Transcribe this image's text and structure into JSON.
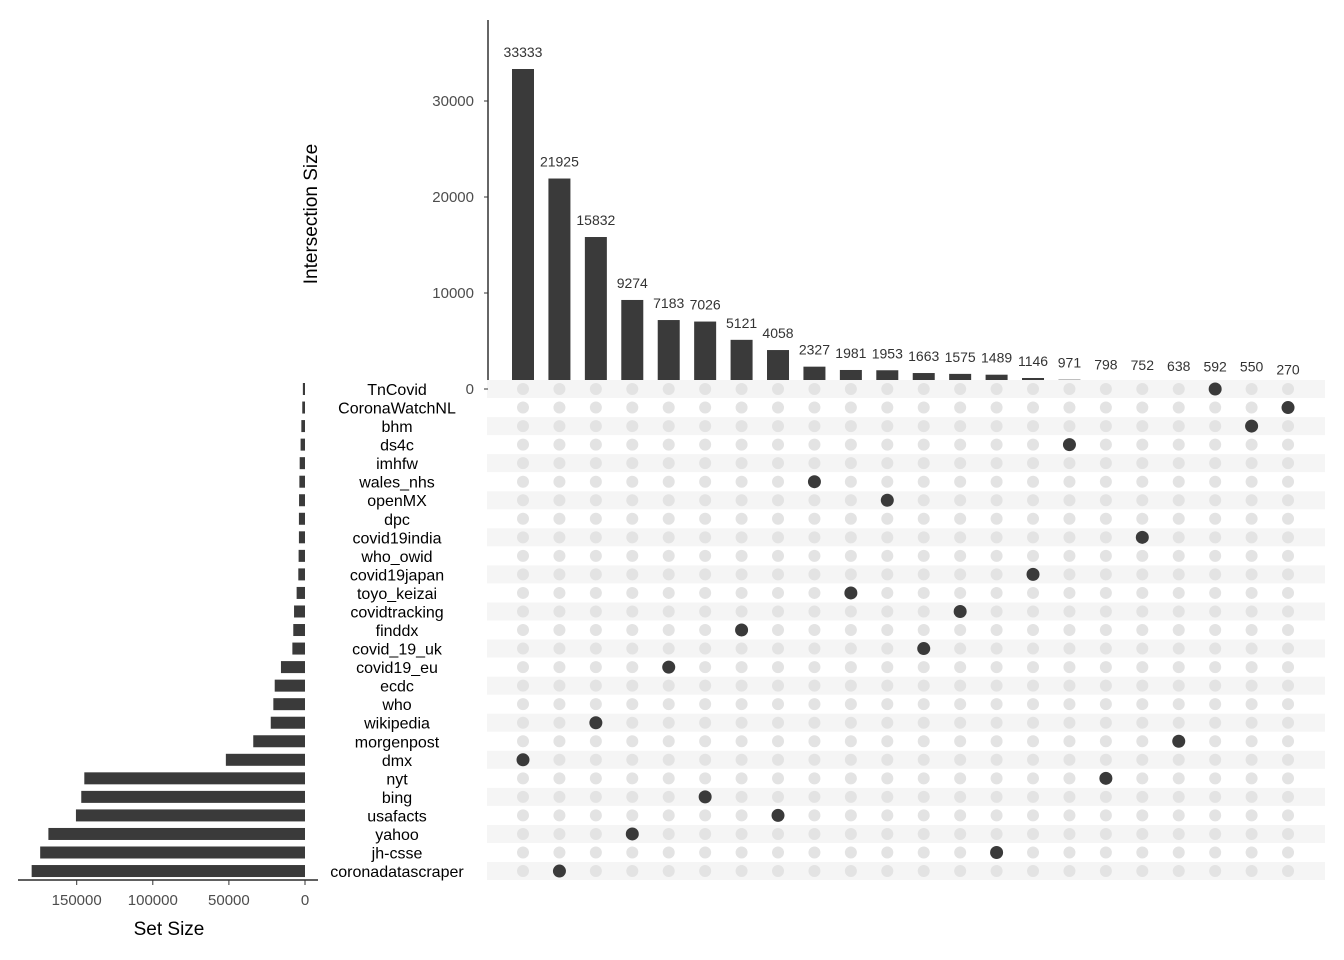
{
  "chart_data": {
    "type": "upset",
    "intersection_axis": {
      "label": "Intersection Size",
      "ticks": [
        0,
        10000,
        20000,
        30000
      ],
      "tick_labels": [
        "0",
        "10000",
        "20000",
        "30000"
      ],
      "ylim": [
        0,
        37500
      ]
    },
    "set_axis": {
      "label": "Set Size",
      "ticks": [
        150000,
        100000,
        50000,
        0
      ],
      "tick_labels": [
        "150000",
        "100000",
        "50000",
        "0"
      ],
      "xlim": [
        0,
        187000
      ]
    },
    "sets": [
      {
        "name": "TnCovid",
        "size": 1400
      },
      {
        "name": "CoronaWatchNL",
        "size": 1800
      },
      {
        "name": "bhm",
        "size": 2400
      },
      {
        "name": "ds4c",
        "size": 2900
      },
      {
        "name": "imhfw",
        "size": 3500
      },
      {
        "name": "wales_nhs",
        "size": 3700
      },
      {
        "name": "openMX",
        "size": 3900
      },
      {
        "name": "dpc",
        "size": 4000
      },
      {
        "name": "covid19india",
        "size": 4000
      },
      {
        "name": "who_owid",
        "size": 4200
      },
      {
        "name": "covid19japan",
        "size": 4400
      },
      {
        "name": "toyo_keizai",
        "size": 5500
      },
      {
        "name": "covidtracking",
        "size": 7200
      },
      {
        "name": "finddx",
        "size": 7700
      },
      {
        "name": "covid_19_uk",
        "size": 8300
      },
      {
        "name": "covid19_eu",
        "size": 15800
      },
      {
        "name": "ecdc",
        "size": 19900
      },
      {
        "name": "who",
        "size": 20800
      },
      {
        "name": "wikipedia",
        "size": 22500
      },
      {
        "name": "morgenpost",
        "size": 34000
      },
      {
        "name": "dmx",
        "size": 52000
      },
      {
        "name": "nyt",
        "size": 145000
      },
      {
        "name": "bing",
        "size": 147000
      },
      {
        "name": "usafacts",
        "size": 150500
      },
      {
        "name": "yahoo",
        "size": 168600
      },
      {
        "name": "jh-csse",
        "size": 174000
      },
      {
        "name": "coronadatascraper",
        "size": 179600
      }
    ],
    "intersections": [
      {
        "value": 33333,
        "label": "33333",
        "set": "dmx"
      },
      {
        "value": 21925,
        "label": "21925",
        "set": "coronadatascraper"
      },
      {
        "value": 15832,
        "label": "15832",
        "set": "wikipedia"
      },
      {
        "value": 9274,
        "label": "9274",
        "set": "yahoo"
      },
      {
        "value": 7183,
        "label": "7183",
        "set": "covid19_eu"
      },
      {
        "value": 7026,
        "label": "7026",
        "set": "bing"
      },
      {
        "value": 5121,
        "label": "5121",
        "set": "finddx"
      },
      {
        "value": 4058,
        "label": "4058",
        "set": "usafacts"
      },
      {
        "value": 2327,
        "label": "2327",
        "set": "wales_nhs"
      },
      {
        "value": 1981,
        "label": "1981",
        "set": "toyo_keizai"
      },
      {
        "value": 1953,
        "label": "1953",
        "set": "openMX"
      },
      {
        "value": 1663,
        "label": "1663",
        "set": "covid_19_uk"
      },
      {
        "value": 1575,
        "label": "1575",
        "set": "covidtracking"
      },
      {
        "value": 1489,
        "label": "1489",
        "set": "jh-csse"
      },
      {
        "value": 1146,
        "label": "1146",
        "set": "covid19japan"
      },
      {
        "value": 971,
        "label": "971",
        "set": "ds4c"
      },
      {
        "value": 798,
        "label": "798",
        "set": "nyt"
      },
      {
        "value": 752,
        "label": "752",
        "set": "covid19india"
      },
      {
        "value": 638,
        "label": "638",
        "set": "morgenpost"
      },
      {
        "value": 592,
        "label": "592",
        "set": "TnCovid"
      },
      {
        "value": 550,
        "label": "550",
        "set": "bhm"
      },
      {
        "value": 270,
        "label": "270",
        "set": "CoronaWatchNL"
      }
    ],
    "colors": {
      "bar": "#3a3a3a",
      "dot_on": "#3a3a3a",
      "dot_off": "#e3e3e3",
      "stripe": "#f5f5f5"
    }
  }
}
